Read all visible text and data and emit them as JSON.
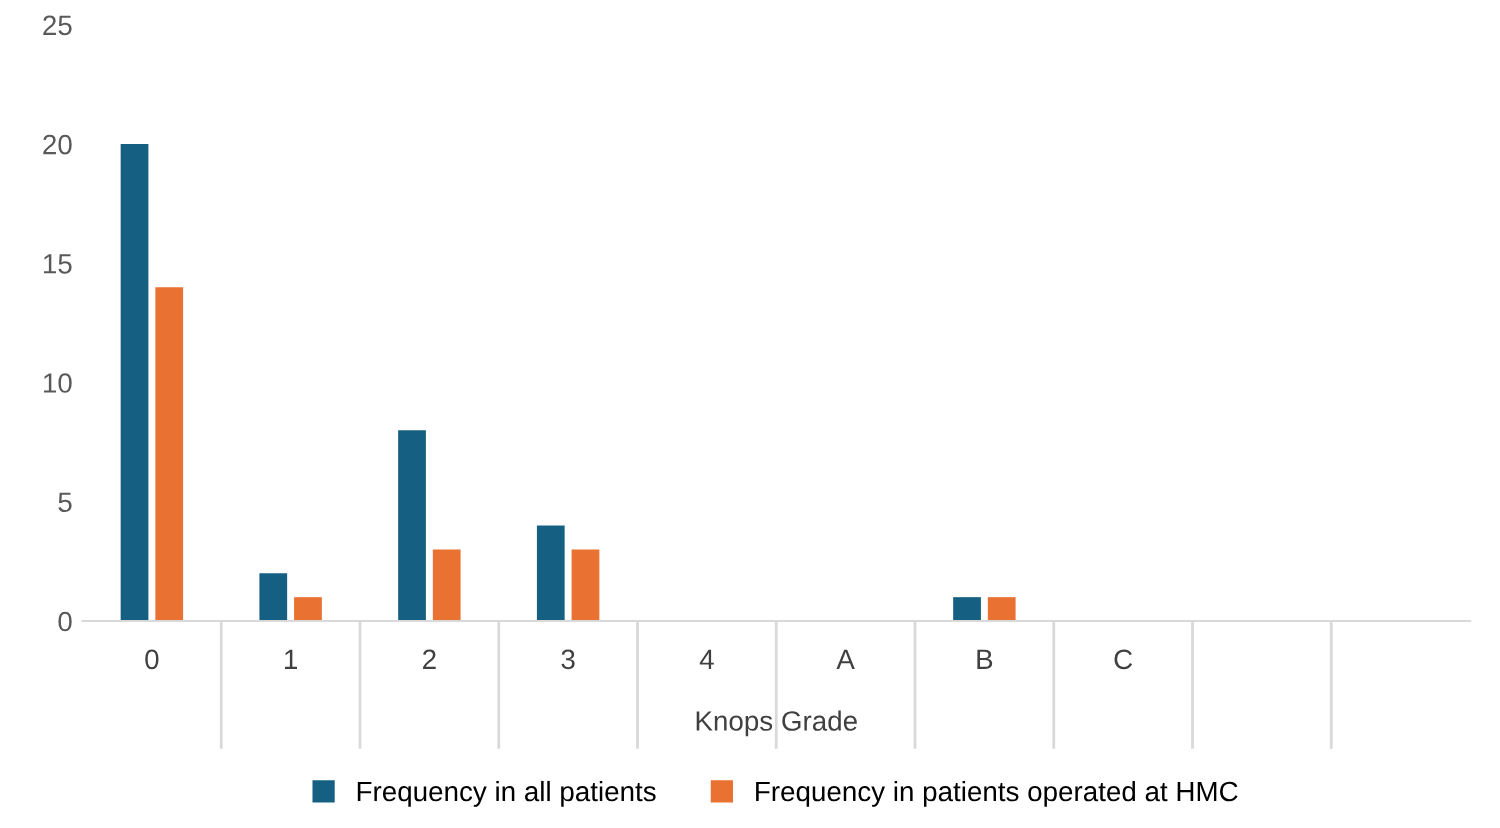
{
  "chart_data": {
    "type": "bar",
    "xlabel": "Knops Grade",
    "categories": [
      "0",
      "1",
      "2",
      "3",
      "4",
      "A",
      "B",
      "C",
      null,
      null
    ],
    "series": [
      {
        "name": "Frequency in all patients",
        "color": "#156082",
        "values": [
          20,
          2,
          8,
          4,
          0,
          0,
          1,
          0,
          null,
          null
        ]
      },
      {
        "name": "Frequency in patients operated at HMC",
        "color": "#e97132",
        "values": [
          14,
          1,
          3,
          3,
          0,
          0,
          1,
          0,
          null,
          null
        ]
      }
    ],
    "ylim": [
      0,
      25
    ],
    "yticks": [
      0,
      5,
      10,
      15,
      20,
      25
    ],
    "grid": false,
    "legend": "bottom"
  }
}
